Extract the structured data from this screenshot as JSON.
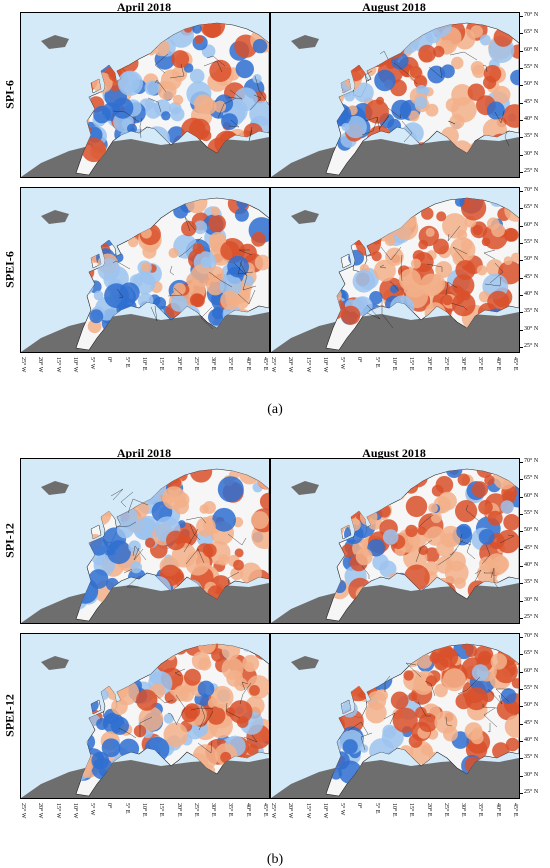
{
  "figures": [
    {
      "caption": "(a)",
      "columns": [
        "April 2018",
        "August 2018"
      ],
      "rows": [
        {
          "label": "SPI-6",
          "panels": [
            {
              "pattern": "mixed"
            },
            {
              "pattern": "dry"
            }
          ]
        },
        {
          "label": "SPEI-6",
          "panels": [
            {
              "pattern": "mixed"
            },
            {
              "pattern": "very-dry"
            }
          ]
        }
      ]
    },
    {
      "caption": "(b)",
      "columns": [
        "April 2018",
        "August 2018"
      ],
      "rows": [
        {
          "label": "SPI-12",
          "panels": [
            {
              "pattern": "east-dry"
            },
            {
              "pattern": "dry"
            }
          ]
        },
        {
          "label": "SPEI-12",
          "panels": [
            {
              "pattern": "east-dry"
            },
            {
              "pattern": "very-dry"
            }
          ]
        }
      ]
    }
  ],
  "lat_ticks": [
    "70° N",
    "65° N",
    "60° N",
    "55° N",
    "50° N",
    "45° N",
    "40° N",
    "35° N",
    "30° N",
    "25° N"
  ],
  "lon_ticks": [
    "25° W",
    "20° W",
    "15° W",
    "10° W",
    "5° W",
    "0°",
    "5° E",
    "10° E",
    "15° E",
    "20° E",
    "25° E",
    "30° E",
    "35° E",
    "40° E",
    "45° E"
  ],
  "colors": {
    "sea": "#d4eaf8",
    "land_outside": "#6e6e6e",
    "wet": "#2f6fd0",
    "wet_light": "#9cc3ee",
    "dry": "#d9502a",
    "dry_light": "#f2b08a",
    "neutral": "#f6f6f6"
  }
}
